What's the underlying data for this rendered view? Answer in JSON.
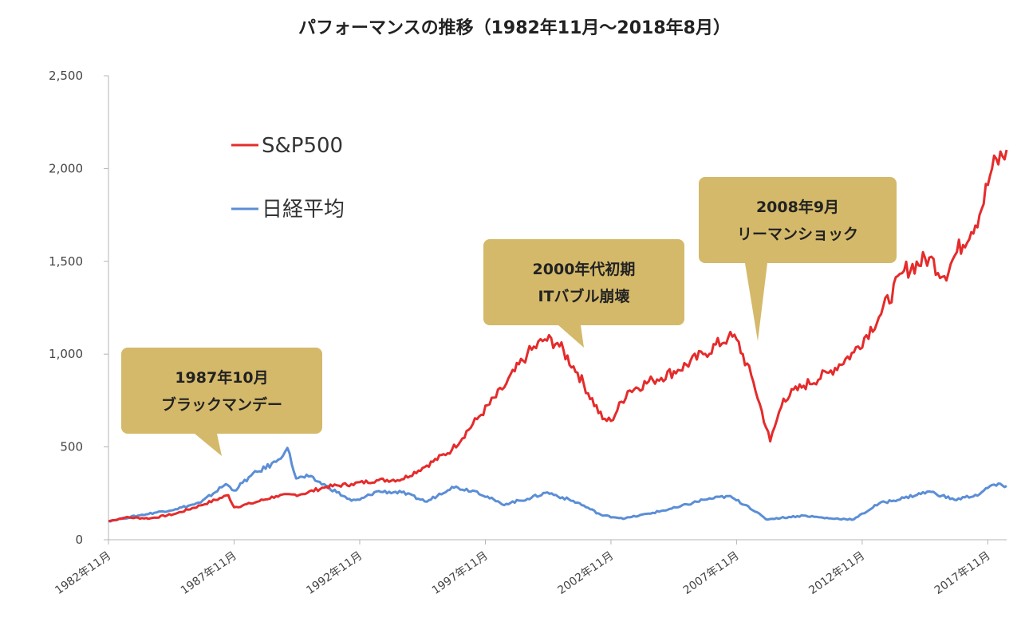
{
  "chart_data": {
    "type": "line",
    "title": "パフォーマンスの推移（1982年11月〜2018年8月）",
    "xlabel": "",
    "ylabel": "",
    "ylim": [
      0,
      2500
    ],
    "y_ticks": [
      0,
      500,
      1000,
      1500,
      2000,
      2500
    ],
    "y_tick_labels": [
      "0",
      "500",
      "1,000",
      "1,500",
      "2,000",
      "2,500"
    ],
    "x_range": [
      1982.83,
      2018.58
    ],
    "x_ticks": [
      1982.83,
      1987.83,
      1992.83,
      1997.83,
      2002.83,
      2007.83,
      2012.83,
      2017.83
    ],
    "x_tick_labels": [
      "1982年11月",
      "1987年11月",
      "1992年11月",
      "1997年11月",
      "2002年11月",
      "2007年11月",
      "2012年11月",
      "2017年11月"
    ],
    "grid": false,
    "legend_position": "top-left",
    "colors": {
      "sp500": "#e52b2b",
      "nikkei": "#5b8ed6",
      "callout": "#d4b96a"
    },
    "series": [
      {
        "name": "S&P500",
        "x": [
          1982.83,
          1983.5,
          1984.5,
          1985.5,
          1986.5,
          1987.6,
          1987.83,
          1988.5,
          1989.5,
          1990.5,
          1991.5,
          1992.5,
          1993.5,
          1994.5,
          1995.5,
          1996.5,
          1997.5,
          1998.5,
          1999.5,
          2000.2,
          2000.7,
          2001.5,
          2002.5,
          2002.83,
          2003.5,
          2004.5,
          2005.5,
          2006.5,
          2007.5,
          2007.83,
          2008.5,
          2009.17,
          2009.7,
          2010.5,
          2011.5,
          2012.5,
          2013.5,
          2014.5,
          2015.5,
          2016.1,
          2016.6,
          2017.5,
          2018.0,
          2018.58
        ],
        "values": [
          100,
          120,
          115,
          140,
          185,
          240,
          175,
          195,
          235,
          245,
          285,
          300,
          320,
          325,
          400,
          485,
          650,
          810,
          1000,
          1080,
          1060,
          900,
          650,
          640,
          800,
          860,
          915,
          1000,
          1090,
          1080,
          850,
          530,
          760,
          830,
          900,
          1010,
          1200,
          1450,
          1520,
          1420,
          1550,
          1750,
          2000,
          2100
        ]
      },
      {
        "name": "日経平均",
        "x": [
          1982.83,
          1984.0,
          1985.5,
          1986.5,
          1987.5,
          1987.83,
          1988.5,
          1989.5,
          1989.95,
          1990.3,
          1990.8,
          1991.5,
          1992.5,
          1992.83,
          1993.5,
          1994.5,
          1995.5,
          1996.5,
          1997.5,
          1998.5,
          1999.5,
          2000.3,
          2001.5,
          2002.5,
          2003.4,
          2004.5,
          2005.5,
          2006.5,
          2007.5,
          2008.3,
          2009.0,
          2010.5,
          2011.5,
          2012.5,
          2013.5,
          2014.5,
          2015.5,
          2016.5,
          2017.5,
          2018.0,
          2018.58
        ],
        "values": [
          100,
          130,
          165,
          200,
          300,
          265,
          345,
          420,
          495,
          330,
          340,
          290,
          210,
          215,
          260,
          255,
          205,
          285,
          260,
          190,
          220,
          255,
          200,
          130,
          115,
          145,
          175,
          215,
          235,
          180,
          110,
          130,
          115,
          110,
          195,
          225,
          260,
          215,
          245,
          295,
          290
        ]
      }
    ],
    "legend": [
      {
        "label": "S&P500",
        "series": "sp500"
      },
      {
        "label": "日経平均",
        "series": "nikkei"
      }
    ],
    "annotations": [
      {
        "line1": "1987年10月",
        "line2": "ブラックマンデー"
      },
      {
        "line1": "2000年代初期",
        "line2": "ITバブル崩壊"
      },
      {
        "line1": "2008年9月",
        "line2": "リーマンショック"
      }
    ]
  }
}
